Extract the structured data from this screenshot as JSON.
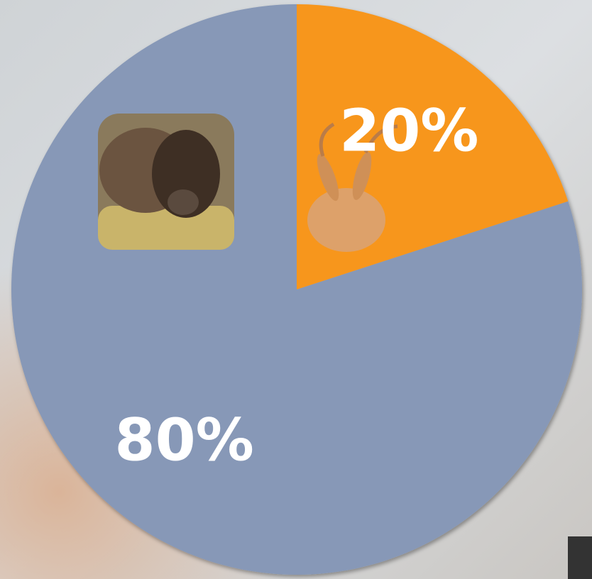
{
  "chart_data": {
    "type": "pie",
    "values": [
      20,
      80
    ],
    "value_labels": [
      "20%",
      "80%"
    ],
    "colors": [
      "#f7961d",
      "#8798b7"
    ]
  }
}
